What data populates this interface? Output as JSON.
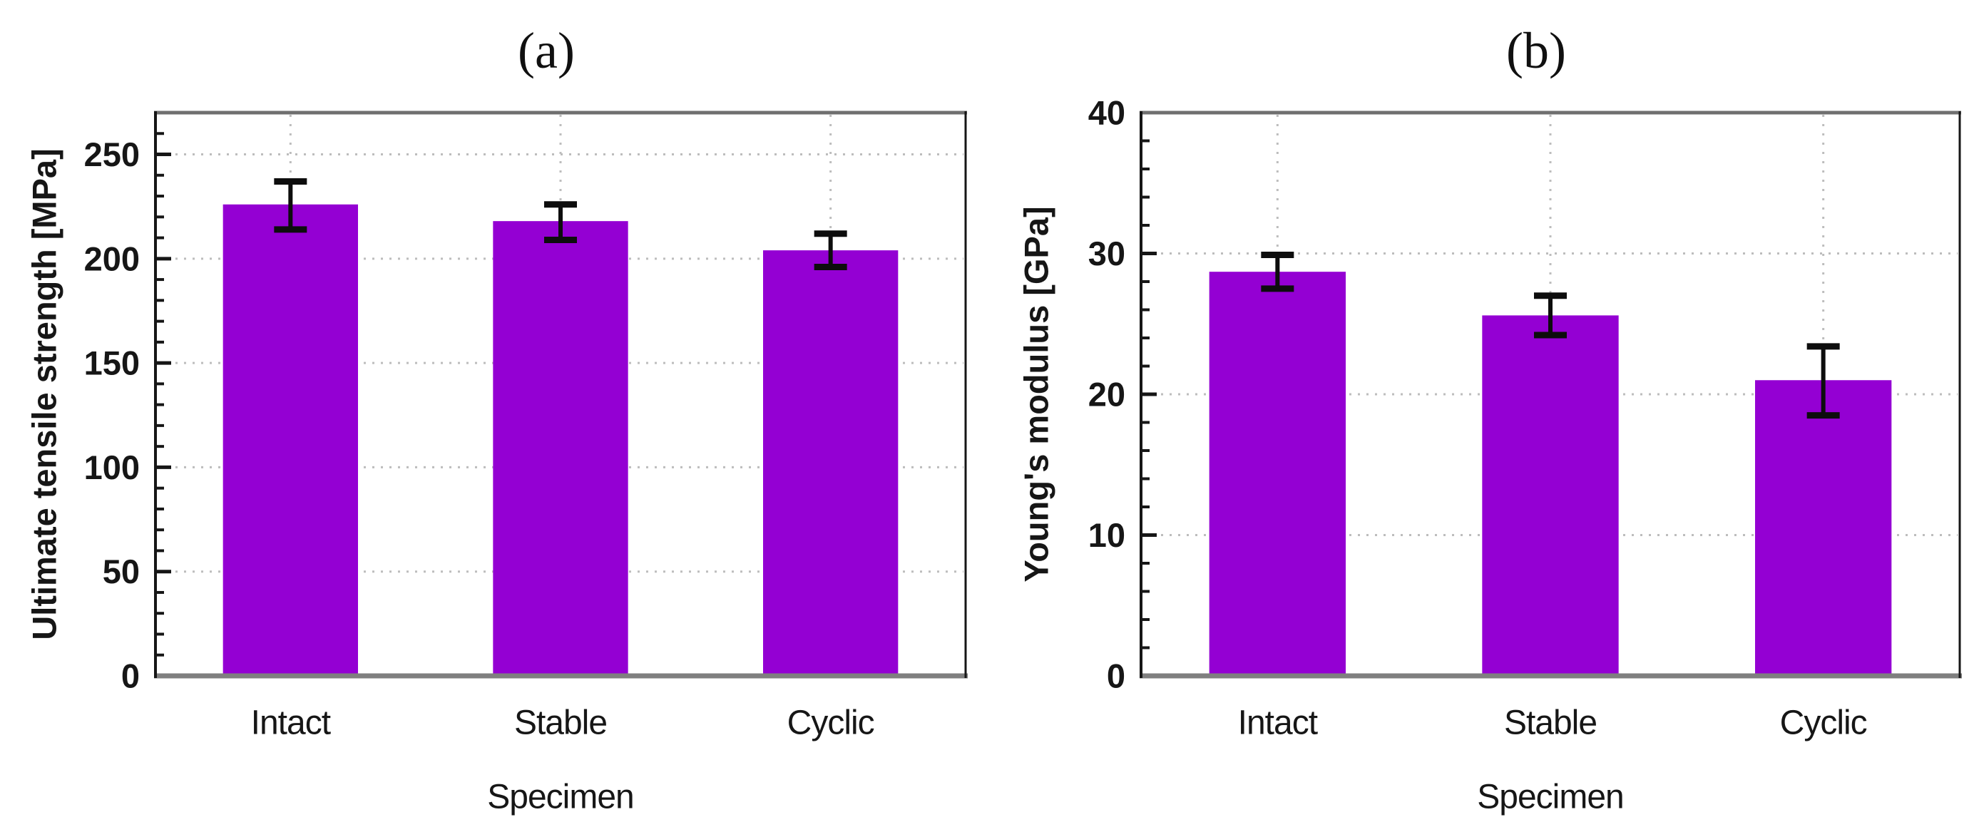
{
  "figure": {
    "background": "#ffffff",
    "panel_a_title": "(a)",
    "panel_b_title": "(b)"
  },
  "style": {
    "bar_color": "#9400d3",
    "error_color": "#0d0d0d",
    "grid_color": "#bdbdbd",
    "frame_gray_top": "#6f6f6f",
    "frame_gray_bottom": "#7f7f7f",
    "frame_dark": "#161616",
    "text_color": "#161616"
  },
  "chart_data": [
    {
      "type": "bar",
      "panel_label": "(a)",
      "categories": [
        "Intact",
        "Stable",
        "Cyclic"
      ],
      "values": [
        226,
        218,
        204
      ],
      "error_low": [
        214,
        209,
        196
      ],
      "error_high": [
        237,
        226,
        212
      ],
      "xlabel": "Specimen",
      "ylabel": "Ultimate tensile strength [MPa]",
      "ylim": [
        0,
        270
      ],
      "yticks": [
        0,
        50,
        100,
        150,
        200,
        250
      ],
      "minor_tick_step": 10,
      "grid": "dotted-major-horizontal-plus-vertical-at-bar-centers",
      "legend": "none"
    },
    {
      "type": "bar",
      "panel_label": "(b)",
      "categories": [
        "Intact",
        "Stable",
        "Cyclic"
      ],
      "values": [
        28.7,
        25.6,
        21.0
      ],
      "error_low": [
        27.5,
        24.2,
        18.5
      ],
      "error_high": [
        29.9,
        27.0,
        23.4
      ],
      "xlabel": "Specimen",
      "ylabel": "Young's modulus [GPa]",
      "ylim": [
        0,
        40
      ],
      "yticks": [
        0,
        10,
        20,
        30,
        40
      ],
      "minor_tick_step": 2,
      "grid": "dotted-major-horizontal-plus-vertical-at-bar-centers",
      "legend": "none"
    }
  ]
}
